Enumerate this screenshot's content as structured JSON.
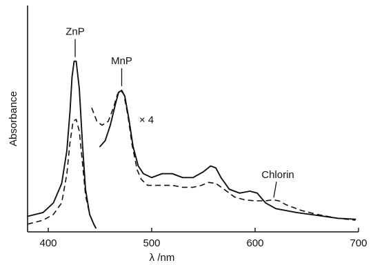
{
  "chart_data": {
    "type": "line",
    "xlabel": "λ /nm",
    "ylabel": "Absorbance",
    "xlim": [
      380,
      700
    ],
    "ylim": [
      0,
      1
    ],
    "x_ticks": [
      400,
      500,
      600,
      700
    ],
    "y_ticks": [],
    "grid": false,
    "series": [
      {
        "style": "solid",
        "points": [
          [
            380,
            0.08
          ],
          [
            395,
            0.1
          ],
          [
            405,
            0.15
          ],
          [
            413,
            0.25
          ],
          [
            418,
            0.42
          ],
          [
            421,
            0.62
          ],
          [
            423,
            0.8
          ],
          [
            425,
            0.88
          ],
          [
            427,
            0.88
          ],
          [
            430,
            0.74
          ],
          [
            433,
            0.46
          ],
          [
            436,
            0.22
          ],
          [
            440,
            0.09
          ],
          [
            444,
            0.04
          ],
          [
            446,
            0.02
          ]
        ]
      },
      {
        "style": "dashed",
        "points": [
          [
            380,
            0.04
          ],
          [
            395,
            0.06
          ],
          [
            405,
            0.09
          ],
          [
            413,
            0.15
          ],
          [
            418,
            0.3
          ],
          [
            421,
            0.46
          ],
          [
            424,
            0.57
          ],
          [
            427,
            0.58
          ],
          [
            430,
            0.52
          ],
          [
            433,
            0.36
          ],
          [
            436,
            0.19
          ],
          [
            440,
            0.09
          ],
          [
            444,
            0.04
          ],
          [
            446,
            0.02
          ]
        ]
      },
      {
        "style": "solid",
        "points": [
          [
            450,
            0.44
          ],
          [
            455,
            0.47
          ],
          [
            460,
            0.55
          ],
          [
            465,
            0.66
          ],
          [
            468,
            0.72
          ],
          [
            471,
            0.73
          ],
          [
            474,
            0.7
          ],
          [
            478,
            0.58
          ],
          [
            482,
            0.44
          ],
          [
            487,
            0.34
          ],
          [
            492,
            0.3
          ],
          [
            500,
            0.28
          ],
          [
            510,
            0.3
          ],
          [
            520,
            0.3
          ],
          [
            530,
            0.28
          ],
          [
            540,
            0.28
          ],
          [
            550,
            0.31
          ],
          [
            557,
            0.34
          ],
          [
            562,
            0.33
          ],
          [
            567,
            0.28
          ],
          [
            575,
            0.22
          ],
          [
            585,
            0.2
          ],
          [
            595,
            0.21
          ],
          [
            602,
            0.2
          ],
          [
            610,
            0.15
          ],
          [
            620,
            0.12
          ],
          [
            640,
            0.1
          ],
          [
            660,
            0.085
          ],
          [
            680,
            0.07
          ],
          [
            697,
            0.065
          ]
        ]
      },
      {
        "style": "dashed",
        "points": [
          [
            442,
            0.64
          ],
          [
            447,
            0.57
          ],
          [
            452,
            0.55
          ],
          [
            458,
            0.57
          ],
          [
            463,
            0.64
          ],
          [
            467,
            0.71
          ],
          [
            470,
            0.73
          ],
          [
            473,
            0.71
          ],
          [
            477,
            0.6
          ],
          [
            481,
            0.45
          ],
          [
            486,
            0.32
          ],
          [
            490,
            0.27
          ],
          [
            496,
            0.24
          ],
          [
            505,
            0.24
          ],
          [
            520,
            0.24
          ],
          [
            530,
            0.23
          ],
          [
            540,
            0.23
          ],
          [
            548,
            0.24
          ],
          [
            555,
            0.255
          ],
          [
            562,
            0.25
          ],
          [
            570,
            0.22
          ],
          [
            580,
            0.18
          ],
          [
            590,
            0.165
          ],
          [
            600,
            0.16
          ],
          [
            610,
            0.16
          ],
          [
            617,
            0.165
          ],
          [
            623,
            0.16
          ],
          [
            630,
            0.14
          ],
          [
            645,
            0.11
          ],
          [
            660,
            0.09
          ],
          [
            680,
            0.07
          ],
          [
            697,
            0.06
          ]
        ]
      }
    ],
    "annotations": [
      {
        "text": "ZnP",
        "x": 426,
        "y": 0.88
      },
      {
        "text": "MnP",
        "x": 471,
        "y": 0.73
      },
      {
        "text": "× 4",
        "x": 495,
        "y": 0.56
      },
      {
        "text": "Chlorin",
        "x": 618,
        "y": 0.17
      }
    ]
  }
}
